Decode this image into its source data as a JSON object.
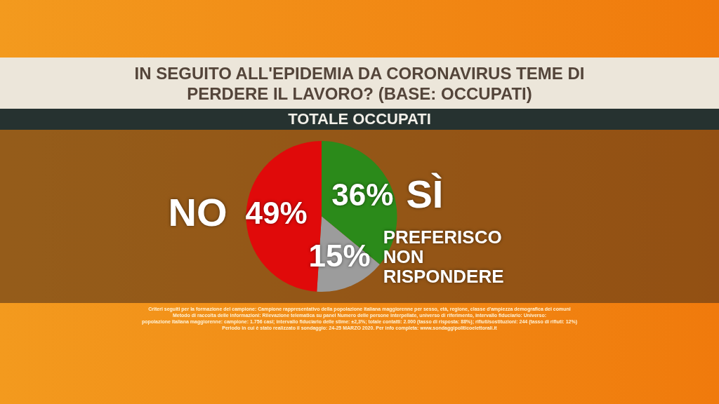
{
  "chart_data": {
    "type": "pie",
    "title": "IN SEGUITO ALL'EPIDEMIA DA CORONAVIRUS TEME DI PERDERE IL LAVORO? (BASE: OCCUPATI)",
    "subtitle": "TOTALE OCCUPATI",
    "categories": [
      "SÌ",
      "PREFERISCO NON RISPONDERE",
      "NO"
    ],
    "values": [
      36,
      15,
      49
    ],
    "value_labels": [
      "36%",
      "15%",
      "49%"
    ],
    "colors": [
      "#2b8a1a",
      "#9c9c9c",
      "#e00a0a"
    ],
    "legend": false,
    "annotations": [
      "Criteri seguiti per la formazione del campione: Campione rappresentativo della popolazione italiana maggiorenne per sesso, età, regione, classe d'ampiezza demografica dei comuni",
      "Metodo di raccolta delle informazioni: Rilevazione telematica su panel Numero delle persone interpellate, universo di riferimento, intervallo fiduciario: Universo:",
      "popolazione italiana maggiorenne: campione: 1.756 casi; intervallo fiduciario delle stime: ±2,3%; totale contatti: 2.000 (tasso di risposta: 88%); rifiuti/sostituzioni: 244 (tasso di rifiuti: 12%)",
      "Periodo in cui è stato realizzato il sondaggio: 24-25 MARZO 2020. Per info completa: www.sondaggipoliticoelettorali.it"
    ]
  }
}
